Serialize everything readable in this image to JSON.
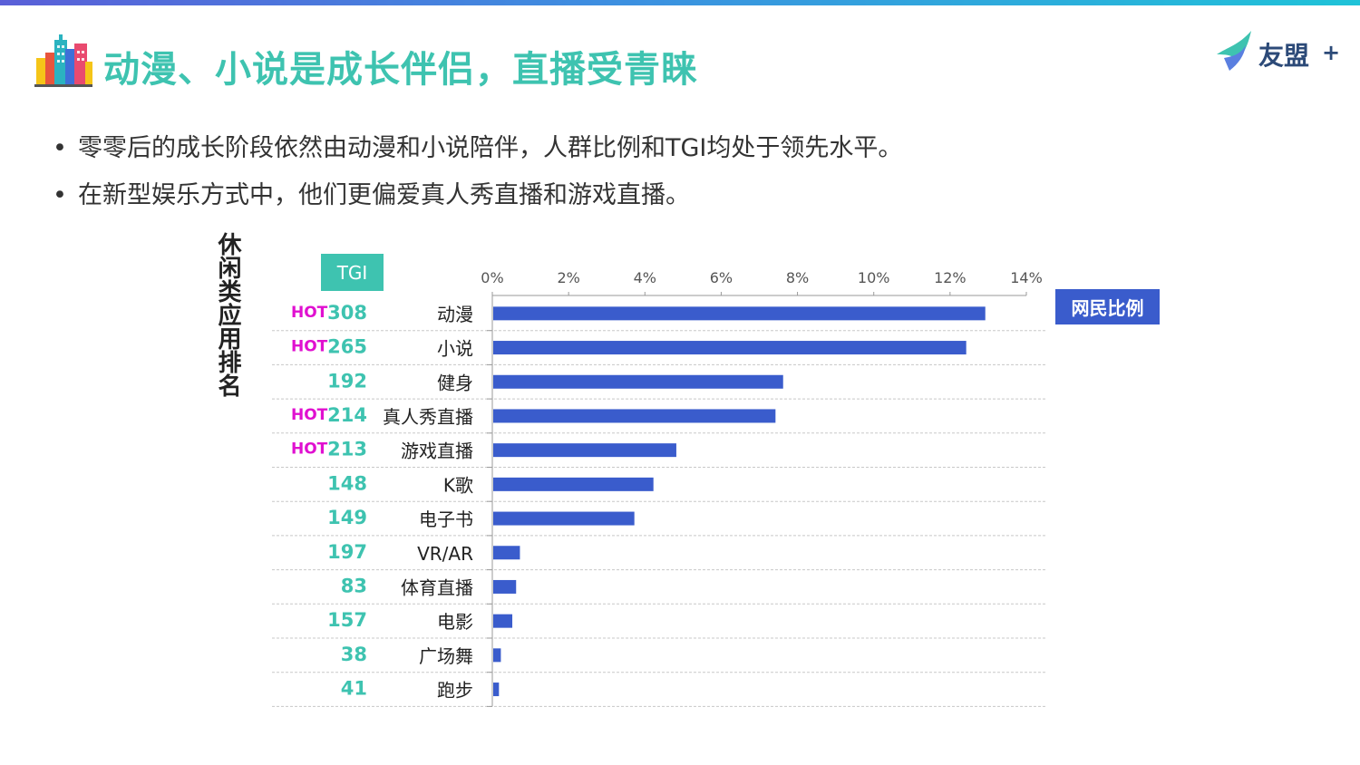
{
  "page": {
    "title": "动漫、小说是成长伴侣，直播受青睐",
    "logo_text": "友盟",
    "logo_plus": "+",
    "bullets": [
      "零零后的成长阶段依然由动漫和小说陪伴，人群比例和TGI均处于领先水平。",
      "在新型娱乐方式中，他们更偏爱真人秀直播和游戏直播。"
    ],
    "vertical_title": "休闲类应用排名",
    "tgi_header": "TGI",
    "icons": {
      "title": "city-buildings-icon",
      "logo": "umeng-bird-logo-icon"
    }
  },
  "colors": {
    "accent": "#3ec3b0",
    "bar": "#3a5ccc",
    "hot": "#e010d0",
    "tgi_text": "#3ec3b0"
  },
  "chart_data": {
    "type": "bar",
    "orientation": "horizontal",
    "legend": "网民比例",
    "legend_position": "right",
    "xlim": [
      0,
      14
    ],
    "x_ticks": [
      "0%",
      "2%",
      "4%",
      "6%",
      "8%",
      "10%",
      "12%",
      "14%"
    ],
    "grid": "horizontal-dashed",
    "categories": [
      "动漫",
      "小说",
      "健身",
      "真人秀直播",
      "游戏直播",
      "K歌",
      "电子书",
      "VR/AR",
      "体育直播",
      "电影",
      "广场舞",
      "跑步"
    ],
    "values": [
      12.9,
      12.4,
      7.6,
      7.4,
      4.8,
      4.2,
      3.7,
      0.7,
      0.6,
      0.5,
      0.2,
      0.15
    ],
    "tgi": [
      308,
      265,
      192,
      214,
      213,
      148,
      149,
      197,
      83,
      157,
      38,
      41
    ],
    "hot": [
      true,
      true,
      false,
      true,
      true,
      false,
      false,
      false,
      false,
      false,
      false,
      false
    ],
    "hot_label": "HOT"
  }
}
